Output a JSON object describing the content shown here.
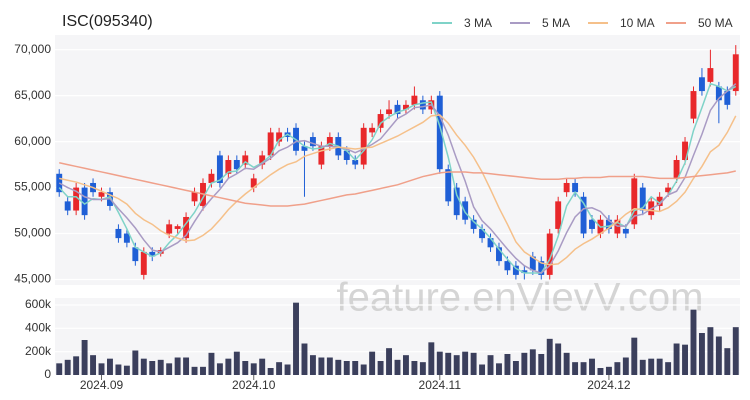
{
  "chart_data": [
    {
      "type": "candlestick",
      "title": "ISC(095340)",
      "up_color": "#e8282b",
      "down_color": "#1f5fd6",
      "grid": true,
      "legend": "top-right",
      "open": [
        56500,
        53500,
        52500,
        55000,
        55500,
        54000,
        54500,
        50500,
        50000,
        48500,
        45500,
        48000,
        47800,
        50000,
        50500,
        49500,
        53500,
        53000,
        55500,
        58500,
        56500,
        58000,
        57500,
        55000,
        57500,
        58500,
        60000,
        61000,
        61500,
        59500,
        60500,
        57500,
        59500,
        60500,
        59000,
        58000,
        57500,
        61000,
        61500,
        63000,
        64000,
        63500,
        64000,
        64500,
        63500,
        65000,
        57000,
        55000,
        53500,
        51500,
        50500,
        49500,
        48500,
        47000,
        46500,
        46000,
        47500,
        47000,
        45500,
        50500,
        54500,
        55500,
        54000,
        51500,
        50000,
        51500,
        50000,
        50500,
        51000,
        55000,
        52000,
        53000,
        54500,
        56000,
        58000,
        62500,
        67000,
        66500,
        66000,
        65500,
        65500
      ],
      "high": [
        57000,
        54000,
        55500,
        55500,
        56000,
        55000,
        55000,
        51000,
        50500,
        49000,
        48500,
        48500,
        48500,
        51500,
        51000,
        52300,
        55000,
        56000,
        57000,
        59000,
        58500,
        58500,
        59000,
        56500,
        59000,
        61500,
        61500,
        61500,
        62000,
        60000,
        61000,
        60000,
        61000,
        61000,
        59500,
        58500,
        62000,
        62000,
        63500,
        64500,
        64500,
        64500,
        66000,
        65000,
        65000,
        65500,
        57500,
        55500,
        54000,
        52000,
        51000,
        50000,
        49000,
        47500,
        47000,
        46500,
        48000,
        47500,
        50500,
        54000,
        56000,
        56000,
        54500,
        52000,
        52000,
        52000,
        52000,
        51000,
        56500,
        55500,
        54000,
        54500,
        55500,
        58500,
        60500,
        66000,
        68000,
        70000,
        66500,
        66000,
        70500
      ],
      "low": [
        54000,
        52000,
        52000,
        51500,
        54000,
        53500,
        52500,
        49000,
        48500,
        46500,
        45000,
        47000,
        47500,
        49500,
        50000,
        49000,
        53000,
        52500,
        55000,
        55000,
        56000,
        56500,
        57000,
        54500,
        57000,
        58000,
        59500,
        60000,
        58500,
        54000,
        59000,
        57000,
        59000,
        58000,
        57500,
        57000,
        57000,
        60500,
        61000,
        62500,
        62500,
        63000,
        63500,
        63000,
        63000,
        56500,
        53000,
        51500,
        51000,
        50000,
        49000,
        48000,
        46500,
        45500,
        45000,
        45000,
        45500,
        45000,
        45000,
        50000,
        54000,
        54000,
        49500,
        50000,
        49500,
        50000,
        49500,
        49500,
        50500,
        52000,
        51500,
        52500,
        54000,
        55500,
        57500,
        62000,
        65000,
        66000,
        62000,
        63500,
        65000
      ],
      "close": [
        54500,
        52500,
        55000,
        52000,
        54500,
        54500,
        53000,
        49500,
        49000,
        47000,
        48000,
        47500,
        48200,
        51000,
        50800,
        51800,
        54500,
        55500,
        56500,
        55500,
        58000,
        57000,
        58500,
        56000,
        58500,
        61000,
        61000,
        60500,
        59000,
        59000,
        59500,
        59500,
        60500,
        58500,
        58000,
        57500,
        61500,
        61500,
        63000,
        63500,
        63000,
        64000,
        65000,
        63500,
        64500,
        57000,
        53500,
        52000,
        51500,
        50500,
        49500,
        48500,
        47000,
        46000,
        45500,
        45700,
        46000,
        45500,
        50000,
        53500,
        55500,
        54500,
        50000,
        50500,
        51500,
        50500,
        51500,
        50000,
        56000,
        52500,
        53500,
        54000,
        55000,
        58000,
        60000,
        65500,
        65500,
        68000,
        64500,
        64000,
        69500
      ],
      "series": [
        {
          "name": "3 MA",
          "color": "#7fd3c8",
          "values": [
            55000,
            54000,
            54000,
            53200,
            53800,
            53700,
            54000,
            52300,
            50500,
            48500,
            48000,
            47500,
            47900,
            49000,
            49900,
            51100,
            52300,
            53900,
            55500,
            55800,
            56700,
            56800,
            57800,
            57200,
            57700,
            58500,
            60200,
            60800,
            60200,
            59500,
            59200,
            59300,
            59800,
            59500,
            59000,
            58000,
            59000,
            60200,
            62000,
            62700,
            63200,
            63500,
            64000,
            64200,
            64300,
            61700,
            58300,
            54200,
            52300,
            51300,
            50500,
            49500,
            48300,
            47200,
            46200,
            45700,
            45700,
            45700,
            47200,
            49700,
            53000,
            54500,
            53300,
            51700,
            50700,
            50800,
            51200,
            50700,
            52500,
            52800,
            54000,
            53300,
            54200,
            55700,
            57700,
            61200,
            63700,
            66300,
            66000,
            65500,
            66000
          ]
        },
        {
          "name": "5 MA",
          "color": "#a99bc4",
          "values": [
            55500,
            55000,
            54600,
            54000,
            53700,
            53700,
            53800,
            52700,
            51700,
            50600,
            49300,
            48200,
            48000,
            48500,
            49000,
            49800,
            51300,
            52700,
            53800,
            54800,
            56000,
            56500,
            57100,
            57000,
            57600,
            58200,
            59000,
            59400,
            60000,
            60100,
            59800,
            59500,
            59500,
            59400,
            59200,
            58800,
            59200,
            59700,
            60300,
            61400,
            62500,
            63000,
            63700,
            63800,
            64000,
            62800,
            60700,
            58100,
            55700,
            52900,
            51400,
            50500,
            49400,
            48300,
            47300,
            46500,
            46000,
            45700,
            46500,
            48100,
            50100,
            51800,
            52700,
            52800,
            52400,
            51400,
            50800,
            50800,
            51900,
            52100,
            52700,
            53200,
            54200,
            54600,
            56100,
            58500,
            60800,
            63400,
            64700,
            65500,
            66300
          ]
        },
        {
          "name": "10 MA",
          "color": "#f5c08a",
          "values": [
            56000,
            55800,
            55600,
            55300,
            55000,
            54600,
            54200,
            53800,
            53200,
            52200,
            51500,
            51000,
            50300,
            49800,
            49500,
            49200,
            49300,
            49800,
            50500,
            51500,
            52600,
            53500,
            54300,
            55000,
            55700,
            56400,
            57000,
            57500,
            57800,
            58400,
            58700,
            59000,
            59200,
            59400,
            59300,
            59200,
            59300,
            59400,
            59800,
            60200,
            60600,
            61100,
            61600,
            62100,
            62800,
            62900,
            62000,
            60700,
            59600,
            58300,
            56700,
            54800,
            52800,
            51000,
            49100,
            48000,
            47400,
            46800,
            46600,
            46700,
            47400,
            48300,
            48900,
            49400,
            50000,
            50600,
            51300,
            52100,
            52700,
            52600,
            52500,
            52400,
            52800,
            53500,
            54500,
            56000,
            57300,
            58900,
            59600,
            61000,
            62800
          ]
        },
        {
          "name": "50 MA",
          "color": "#f0a08a",
          "values": [
            57700,
            57500,
            57300,
            57100,
            56900,
            56700,
            56500,
            56300,
            56100,
            55900,
            55700,
            55500,
            55300,
            55100,
            54900,
            54700,
            54500,
            54300,
            54100,
            53900,
            53700,
            53500,
            53300,
            53200,
            53100,
            53000,
            53000,
            53000,
            53100,
            53200,
            53400,
            53600,
            53800,
            54000,
            54200,
            54300,
            54500,
            54700,
            54900,
            55100,
            55300,
            55600,
            55900,
            56200,
            56400,
            56600,
            56700,
            56700,
            56700,
            56600,
            56600,
            56500,
            56400,
            56300,
            56200,
            56100,
            56000,
            55900,
            55900,
            55900,
            56000,
            56000,
            56100,
            56100,
            56100,
            56200,
            56200,
            56200,
            56200,
            56200,
            56100,
            56000,
            56000,
            56000,
            56100,
            56200,
            56300,
            56400,
            56500,
            56600,
            56800
          ]
        }
      ],
      "ylim": [
        44400,
        71600
      ],
      "yticks": [
        {
          "value": 45000,
          "label": "45,000"
        },
        {
          "value": 50000,
          "label": "50,000"
        },
        {
          "value": 55000,
          "label": "55,000"
        },
        {
          "value": 60000,
          "label": "60,000"
        },
        {
          "value": 65000,
          "label": "65,000"
        },
        {
          "value": 70000,
          "label": "70,000"
        }
      ]
    },
    {
      "type": "bar",
      "color": "#3b3f5c",
      "watermark": "feature.enVievV.com",
      "grid": true,
      "categories": [
        null,
        null,
        null,
        null,
        null,
        "2024.09",
        null,
        null,
        null,
        null,
        null,
        null,
        null,
        null,
        null,
        null,
        null,
        null,
        null,
        null,
        null,
        null,
        null,
        "2024.10",
        null,
        null,
        null,
        null,
        null,
        null,
        null,
        null,
        null,
        null,
        null,
        null,
        null,
        null,
        null,
        null,
        null,
        null,
        null,
        null,
        null,
        "2024.11",
        null,
        null,
        null,
        null,
        null,
        null,
        null,
        null,
        null,
        null,
        null,
        null,
        null,
        null,
        null,
        null,
        null,
        null,
        null,
        "2024.12",
        null,
        null,
        null,
        null,
        null,
        null,
        null,
        null,
        null,
        null,
        null,
        null,
        null,
        null,
        null
      ],
      "values": [
        100000,
        130000,
        160000,
        300000,
        170000,
        100000,
        140000,
        90000,
        80000,
        210000,
        140000,
        120000,
        130000,
        100000,
        150000,
        150000,
        70000,
        70000,
        190000,
        100000,
        140000,
        200000,
        120000,
        100000,
        140000,
        60000,
        110000,
        90000,
        620000,
        270000,
        170000,
        150000,
        150000,
        130000,
        120000,
        120000,
        90000,
        200000,
        120000,
        230000,
        130000,
        170000,
        120000,
        110000,
        280000,
        200000,
        190000,
        170000,
        200000,
        190000,
        90000,
        170000,
        100000,
        180000,
        120000,
        190000,
        220000,
        180000,
        310000,
        270000,
        190000,
        110000,
        110000,
        140000,
        60000,
        70000,
        110000,
        150000,
        320000,
        130000,
        140000,
        140000,
        110000,
        270000,
        260000,
        560000,
        360000,
        410000,
        330000,
        230000,
        410000
      ],
      "ylim": [
        0,
        660000
      ],
      "yticks": [
        0,
        {
          "value": 200000,
          "label": "200k"
        },
        {
          "value": 400000,
          "label": "400k"
        },
        {
          "value": 600000,
          "label": "600k"
        }
      ]
    }
  ]
}
